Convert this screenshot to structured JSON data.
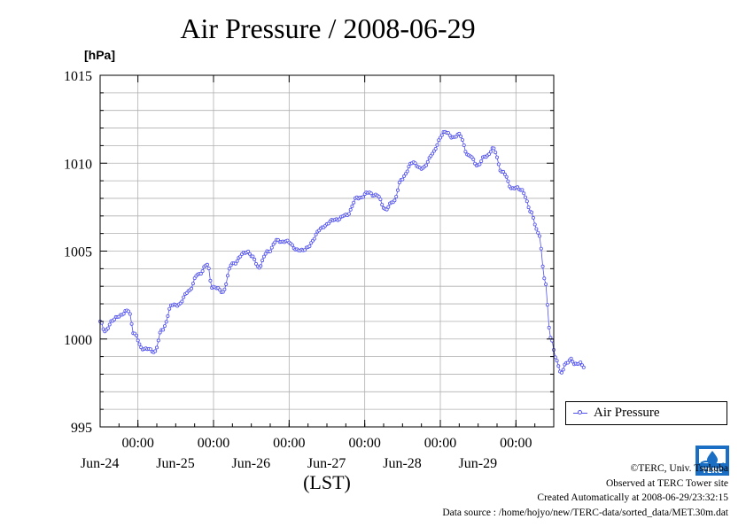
{
  "title": "Air Pressure / 2008-06-29",
  "unit_label": "[hPa]",
  "legend": {
    "label": "Air Pressure"
  },
  "credits": {
    "copyright": "©TERC, Univ. Tsukuba",
    "observed": "Observed at TERC Tower site",
    "created": "Created Automatically at 2008-06-29/23:32:15",
    "source": "Data source : /home/hojyo/new/TERC-data/sorted_data/MET.30m.dat"
  },
  "logo_text": "TERC",
  "colors": {
    "series": "#5050f0",
    "grid": "#b0b0b0"
  },
  "chart_data": {
    "type": "line",
    "title": "Air Pressure / 2008-06-29",
    "ylabel": "[hPa]",
    "xlabel": "(LST)",
    "ylim": [
      995,
      1015
    ],
    "yticks": [
      995,
      1000,
      1005,
      1010,
      1015
    ],
    "xlim": [
      0,
      6
    ],
    "x_unit": "days from 2008-06-23 12:00 LST",
    "xticks": [
      {
        "x": 0.5,
        "time": "00:00",
        "date": "Jun-24"
      },
      {
        "x": 1.5,
        "time": "00:00",
        "date": "Jun-25"
      },
      {
        "x": 2.5,
        "time": "00:00",
        "date": "Jun-26"
      },
      {
        "x": 3.5,
        "time": "00:00",
        "date": "Jun-27"
      },
      {
        "x": 4.5,
        "time": "00:00",
        "date": "Jun-28"
      },
      {
        "x": 5.5,
        "time": "00:00",
        "date": "Jun-29"
      }
    ],
    "grid": true,
    "legend_position": "bottom-right",
    "series": [
      {
        "name": "Air Pressure",
        "keypoints": [
          [
            0.0,
            1001.0
          ],
          [
            0.06,
            1000.4
          ],
          [
            0.15,
            1001.0
          ],
          [
            0.28,
            1001.4
          ],
          [
            0.38,
            1001.6
          ],
          [
            0.45,
            1000.3
          ],
          [
            0.55,
            999.5
          ],
          [
            0.72,
            999.3
          ],
          [
            0.82,
            1000.5
          ],
          [
            0.95,
            1001.9
          ],
          [
            1.05,
            1002.0
          ],
          [
            1.18,
            1002.8
          ],
          [
            1.3,
            1003.7
          ],
          [
            1.42,
            1004.2
          ],
          [
            1.48,
            1003.0
          ],
          [
            1.62,
            1002.7
          ],
          [
            1.75,
            1004.3
          ],
          [
            1.95,
            1005.0
          ],
          [
            2.02,
            1004.6
          ],
          [
            2.1,
            1004.1
          ],
          [
            2.22,
            1005.0
          ],
          [
            2.35,
            1005.6
          ],
          [
            2.5,
            1005.5
          ],
          [
            2.62,
            1005.0
          ],
          [
            2.75,
            1005.2
          ],
          [
            2.9,
            1006.2
          ],
          [
            3.05,
            1006.7
          ],
          [
            3.25,
            1007.0
          ],
          [
            3.4,
            1008.0
          ],
          [
            3.55,
            1008.3
          ],
          [
            3.65,
            1008.2
          ],
          [
            3.78,
            1007.4
          ],
          [
            3.88,
            1007.8
          ],
          [
            3.98,
            1009.0
          ],
          [
            4.12,
            1010.0
          ],
          [
            4.28,
            1009.7
          ],
          [
            4.4,
            1010.6
          ],
          [
            4.55,
            1011.8
          ],
          [
            4.65,
            1011.5
          ],
          [
            4.75,
            1011.6
          ],
          [
            4.88,
            1010.4
          ],
          [
            5.0,
            1009.9
          ],
          [
            5.1,
            1010.4
          ],
          [
            5.2,
            1010.8
          ],
          [
            5.32,
            1009.5
          ],
          [
            5.45,
            1008.6
          ],
          [
            5.58,
            1008.5
          ],
          [
            5.7,
            1007.2
          ],
          [
            5.8,
            1006.0
          ],
          [
            5.88,
            1003.5
          ],
          [
            5.96,
            1000.0
          ],
          [
            6.04,
            998.8
          ],
          [
            6.1,
            998.0
          ],
          [
            6.16,
            998.6
          ],
          [
            6.22,
            998.9
          ],
          [
            6.28,
            998.5
          ],
          [
            6.35,
            998.7
          ],
          [
            6.4,
            998.4
          ]
        ]
      }
    ]
  }
}
